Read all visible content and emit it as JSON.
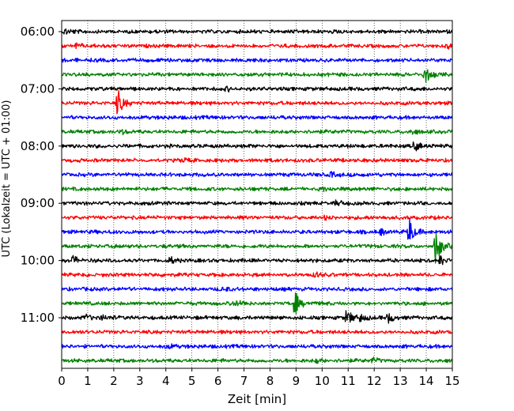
{
  "chart_data": {
    "type": "line",
    "subtype": "helicorder",
    "title": "",
    "xlabel": "Zeit  [min]",
    "ylabel": "UTC (Lokalzeit = UTC + 01:00)",
    "xlim": [
      0,
      15
    ],
    "xticks": [
      "0",
      "1",
      "2",
      "3",
      "4",
      "5",
      "6",
      "7",
      "8",
      "9",
      "10",
      "11",
      "12",
      "13",
      "14",
      "15"
    ],
    "grid": "vertical dotted at each minute",
    "trace_colors": [
      "#000000",
      "#ff0000",
      "#0000ff",
      "#008000"
    ],
    "trace_interval_min": 15,
    "start_time": "06:00",
    "trace_count": 24,
    "yticks": [
      "06:00",
      "07:00",
      "08:00",
      "09:00",
      "10:00",
      "11:00"
    ],
    "events": [
      {
        "trace": 0,
        "minute": 0.1,
        "amp": 0.5
      },
      {
        "trace": 0,
        "minute": 10.6,
        "amp": 0.35
      },
      {
        "trace": 1,
        "minute": 0.5,
        "amp": 0.3
      },
      {
        "trace": 1,
        "minute": 14.8,
        "amp": 0.3
      },
      {
        "trace": 3,
        "minute": 13.9,
        "amp": 1.6
      },
      {
        "trace": 4,
        "minute": 6.3,
        "amp": 0.35
      },
      {
        "trace": 5,
        "minute": 2.1,
        "amp": 2.5
      },
      {
        "trace": 7,
        "minute": 2.2,
        "amp": 0.4
      },
      {
        "trace": 7,
        "minute": 13.4,
        "amp": 0.35
      },
      {
        "trace": 8,
        "minute": 13.5,
        "amp": 0.8
      },
      {
        "trace": 9,
        "minute": 4.6,
        "amp": 0.35
      },
      {
        "trace": 10,
        "minute": 10.3,
        "amp": 0.4
      },
      {
        "trace": 11,
        "minute": 10.0,
        "amp": 0.3
      },
      {
        "trace": 12,
        "minute": 10.5,
        "amp": 0.9
      },
      {
        "trace": 13,
        "minute": 10.1,
        "amp": 0.35
      },
      {
        "trace": 14,
        "minute": 13.3,
        "amp": 2.6
      },
      {
        "trace": 14,
        "minute": 12.2,
        "amp": 0.5
      },
      {
        "trace": 15,
        "minute": 14.3,
        "amp": 3.6
      },
      {
        "trace": 16,
        "minute": 0.4,
        "amp": 0.7
      },
      {
        "trace": 16,
        "minute": 4.1,
        "amp": 0.55
      },
      {
        "trace": 16,
        "minute": 14.5,
        "amp": 0.8
      },
      {
        "trace": 17,
        "minute": 9.7,
        "amp": 0.45
      },
      {
        "trace": 18,
        "minute": 6.1,
        "amp": 0.45
      },
      {
        "trace": 19,
        "minute": 6.6,
        "amp": 0.6
      },
      {
        "trace": 19,
        "minute": 8.9,
        "amp": 2.2
      },
      {
        "trace": 20,
        "minute": 0.9,
        "amp": 0.6
      },
      {
        "trace": 20,
        "minute": 1.5,
        "amp": 0.45
      },
      {
        "trace": 20,
        "minute": 10.9,
        "amp": 1.4
      },
      {
        "trace": 20,
        "minute": 11.4,
        "amp": 0.6
      },
      {
        "trace": 20,
        "minute": 12.5,
        "amp": 0.8
      },
      {
        "trace": 22,
        "minute": 4.0,
        "amp": 0.4
      },
      {
        "trace": 23,
        "minute": 9.7,
        "amp": 0.4
      },
      {
        "trace": 23,
        "minute": 11.9,
        "amp": 0.4
      }
    ]
  }
}
